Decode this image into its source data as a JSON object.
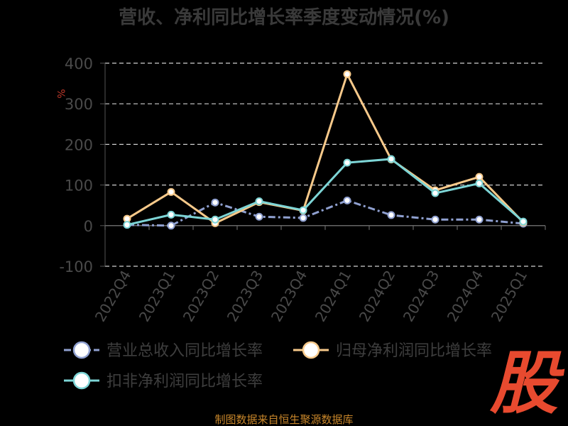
{
  "chart_data": {
    "type": "line",
    "title": "营收、净利同比增长率季度变动情况(%)",
    "ylabel": "%",
    "ylim": [
      -100,
      400
    ],
    "yticks": [
      -100,
      0,
      100,
      200,
      300,
      400
    ],
    "grid": true,
    "legend_position": "bottom",
    "categories": [
      "2022Q4",
      "2023Q1",
      "2023Q2",
      "2023Q3",
      "2023Q4",
      "2024Q1",
      "2024Q2",
      "2024Q3",
      "2024Q4",
      "2025Q1"
    ],
    "series": [
      {
        "name": "营业总收入同比增长率",
        "color": "#8fa0d0",
        "dashed": true,
        "values": [
          2,
          0,
          57,
          22,
          19,
          62,
          26,
          15,
          15,
          5
        ]
      },
      {
        "name": "归母净利润同比增长率",
        "color": "#f7c98a",
        "dashed": false,
        "values": [
          17,
          83,
          6,
          58,
          37,
          373,
          163,
          87,
          120,
          8
        ]
      },
      {
        "name": "扣非净利润同比增长率",
        "color": "#7dd5d6",
        "dashed": false,
        "values": [
          2,
          27,
          15,
          60,
          38,
          155,
          164,
          80,
          104,
          10
        ]
      }
    ]
  },
  "source_text": "制图数据来自恒生聚源数据库",
  "logo": {
    "text": "股",
    "color": "#e84a2f"
  }
}
